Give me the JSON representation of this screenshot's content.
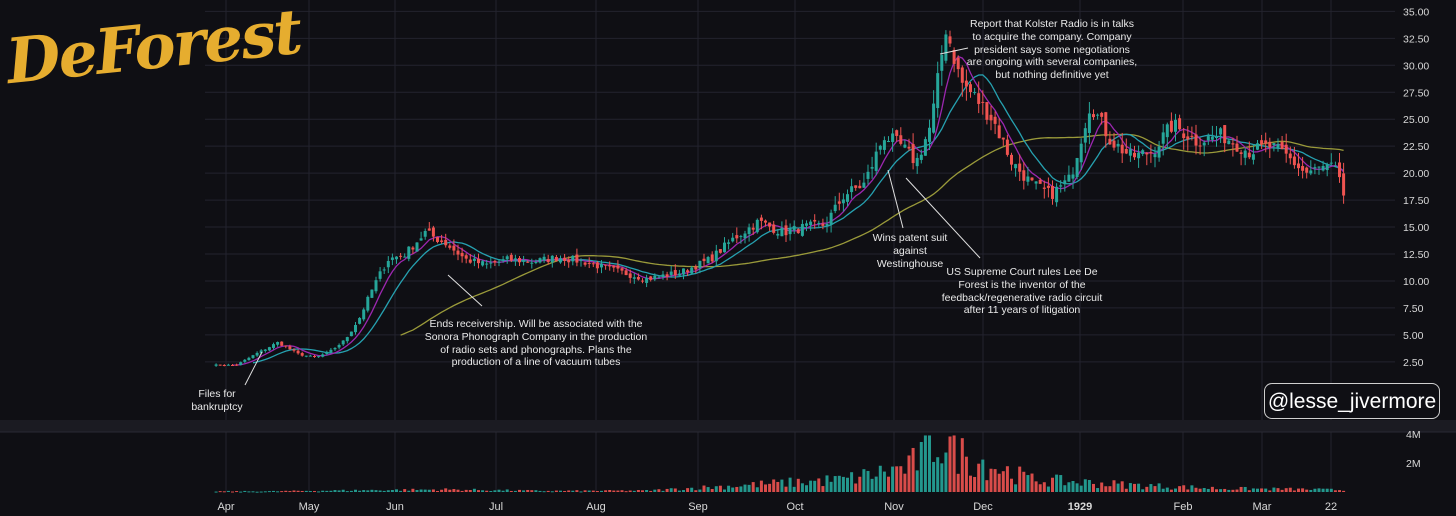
{
  "logo": {
    "text": "DeForest"
  },
  "watermark": {
    "handle": "@lesse_jivermore"
  },
  "annotations": [
    {
      "id": "bankruptcy",
      "text": "Files for\nbankruptcy"
    },
    {
      "id": "receivership",
      "text": "Ends receivership. Will be associated with the\nSonora Phonograph Company in the production\nof radio sets and phonographs. Plans the\nproduction of a line of vacuum tubes"
    },
    {
      "id": "patent",
      "text": "Wins patent suit\nagainst\nWestinghouse"
    },
    {
      "id": "kolster",
      "text": "Report that Kolster Radio is in talks\nto acquire the company. Company\npresident says some negotiations\nare ongoing with several companies,\nbut nothing definitive yet"
    },
    {
      "id": "supreme",
      "text": "US Supreme Court rules Lee De\nForest is the inventor of the\nfeedback/regenerative radio circuit\nafter 11 years of litigation"
    }
  ],
  "chart_data": {
    "type": "candlestick",
    "y_axis": {
      "ticks": [
        "2.50",
        "5.00",
        "7.50",
        "10.00",
        "12.50",
        "15.00",
        "17.50",
        "20.00",
        "22.50",
        "25.00",
        "27.50",
        "30.00",
        "32.50",
        "35.00"
      ],
      "range": [
        1.0,
        35.5
      ],
      "position": "right"
    },
    "volume_axis": {
      "ticks": [
        "2M",
        "4M"
      ],
      "range": [
        0,
        4000000
      ]
    },
    "x_axis": {
      "ticks": [
        "Apr",
        "May",
        "Jun",
        "Jul",
        "Aug",
        "Sep",
        "Oct",
        "Nov",
        "Dec",
        "1929",
        "Feb",
        "Mar",
        "22"
      ]
    },
    "grid": true,
    "colors": {
      "up": "#26a69a",
      "down": "#ef5350",
      "ma_short": "#9c27b0",
      "ma_mid": "#26a1b0",
      "ma_long": "#9a9a3a",
      "background": "#0f0f14",
      "grid": "#23232e",
      "logo": "#e6ad2f"
    },
    "price_keypoints": [
      [
        "Apr",
        2.2
      ],
      [
        "Apr",
        3.3
      ],
      [
        "Apr",
        4.3
      ],
      [
        "Apr",
        3.2
      ],
      [
        "May",
        2.9
      ],
      [
        "May",
        3.5
      ],
      [
        "May",
        4.5
      ],
      [
        "May",
        6.5
      ],
      [
        "May",
        9.5
      ],
      [
        "May",
        12.0
      ],
      [
        "Jun",
        12.5
      ],
      [
        "Jun",
        14.5
      ],
      [
        "Jun",
        13.5
      ],
      [
        "Jun",
        12.0
      ],
      [
        "Jun",
        11.5
      ],
      [
        "Jul",
        12.0
      ],
      [
        "Jul",
        11.8
      ],
      [
        "Jul",
        12.2
      ],
      [
        "Jul",
        11.8
      ],
      [
        "Aug",
        11.0
      ],
      [
        "Aug",
        10.2
      ],
      [
        "Aug",
        10.8
      ],
      [
        "Sep",
        12.0
      ],
      [
        "Sep",
        14.0
      ],
      [
        "Sep",
        15.5
      ],
      [
        "Sep",
        14.5
      ],
      [
        "Oct",
        15.0
      ],
      [
        "Oct",
        15.2
      ],
      [
        "Oct",
        18.0
      ],
      [
        "Oct",
        19.0
      ],
      [
        "Oct",
        23.5
      ],
      [
        "Nov",
        22.5
      ],
      [
        "Nov",
        21.0
      ],
      [
        "Nov",
        24.5
      ],
      [
        "Nov",
        33.5
      ],
      [
        "Nov",
        28.5
      ],
      [
        "Nov",
        27.0
      ],
      [
        "Dec",
        25.0
      ],
      [
        "Dec",
        21.0
      ],
      [
        "Dec",
        19.0
      ],
      [
        "Dec",
        18.0
      ],
      [
        "Dec",
        19.5
      ],
      [
        "1929",
        26.5
      ],
      [
        "1929",
        23.0
      ],
      [
        "1929",
        21.5
      ],
      [
        "1929",
        22.0
      ],
      [
        "1929",
        24.5
      ],
      [
        "Feb",
        23.0
      ],
      [
        "Feb",
        23.5
      ],
      [
        "Feb",
        22.0
      ],
      [
        "Mar",
        22.5
      ],
      [
        "Mar",
        21.5
      ],
      [
        "Mar",
        20.0
      ],
      [
        "Mar",
        20.5
      ],
      [
        "22",
        20.5
      ],
      [
        "22",
        18.5
      ],
      [
        "22",
        16.8
      ]
    ],
    "volume_keypoints": [
      [
        "Apr",
        0.05
      ],
      [
        "May",
        0.12
      ],
      [
        "Jun",
        0.18
      ],
      [
        "Jul",
        0.08
      ],
      [
        "Aug",
        0.1
      ],
      [
        "Sep",
        0.5
      ],
      [
        "Oct",
        0.9
      ],
      [
        "Nov",
        1.8
      ],
      [
        "Nov",
        3.8
      ],
      [
        "Nov",
        2.5
      ],
      [
        "Dec",
        0.9
      ],
      [
        "1929",
        0.5
      ],
      [
        "Feb",
        0.25
      ],
      [
        "Mar",
        0.2
      ],
      [
        "22",
        0.15
      ]
    ],
    "volume_unit": "M"
  }
}
